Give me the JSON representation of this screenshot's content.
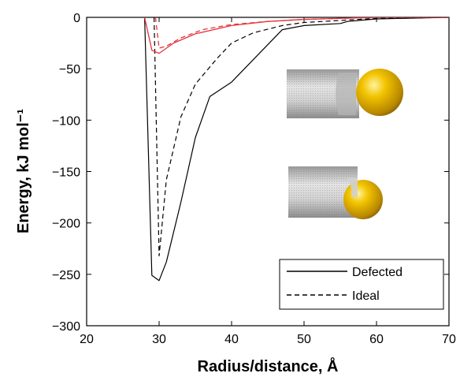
{
  "chart_data": {
    "type": "line",
    "title": "",
    "xlabel": "Radius/distance, Å",
    "ylabel": "Energy, kJ mol⁻¹",
    "xlim": [
      20,
      70
    ],
    "ylim": [
      -300,
      0
    ],
    "xticks": [
      20,
      30,
      40,
      50,
      60,
      70
    ],
    "yticks": [
      0,
      -50,
      -100,
      -150,
      -200,
      -250,
      -300
    ],
    "xtick_labels": [
      "20",
      "30",
      "40",
      "50",
      "60",
      "70"
    ],
    "ytick_labels": [
      "0",
      "−50",
      "−100",
      "−150",
      "−200",
      "−250",
      "−300"
    ],
    "grid": false,
    "legend": {
      "position": "bottom-right"
    },
    "series": [
      {
        "name": "Defected",
        "color": "#000000",
        "dash": "solid",
        "points": [
          [
            28,
            0
          ],
          [
            29,
            -251
          ],
          [
            30,
            -256
          ],
          [
            31,
            -238
          ],
          [
            33,
            -180
          ],
          [
            35,
            -117
          ],
          [
            37,
            -77
          ],
          [
            40,
            -63
          ],
          [
            47,
            -12
          ],
          [
            50,
            -8
          ],
          [
            55,
            -6
          ],
          [
            56,
            -4
          ],
          [
            60,
            -1.5
          ],
          [
            70,
            0
          ]
        ]
      },
      {
        "name": "Ideal",
        "color": "#000000",
        "dash": "dashed",
        "points": [
          [
            29.3,
            0
          ],
          [
            30,
            -232
          ],
          [
            31,
            -158
          ],
          [
            33,
            -97
          ],
          [
            35,
            -65
          ],
          [
            38,
            -40
          ],
          [
            40,
            -25
          ],
          [
            43,
            -15
          ],
          [
            47,
            -8
          ],
          [
            50,
            -5
          ],
          [
            55,
            -3
          ],
          [
            60,
            -1
          ],
          [
            70,
            0
          ]
        ]
      },
      {
        "color": "#e8323c",
        "dash": "solid",
        "points": [
          [
            28,
            0
          ],
          [
            29,
            -32
          ],
          [
            30,
            -35
          ],
          [
            32,
            -25
          ],
          [
            35,
            -16
          ],
          [
            40,
            -8
          ],
          [
            45,
            -4
          ],
          [
            50,
            -2
          ],
          [
            60,
            0
          ],
          [
            70,
            0
          ]
        ]
      },
      {
        "color": "#e8323c",
        "dash": "dashed",
        "points": [
          [
            29.5,
            0
          ],
          [
            30,
            -30
          ],
          [
            31,
            -28
          ],
          [
            33,
            -20
          ],
          [
            36,
            -12
          ],
          [
            40,
            -7
          ],
          [
            45,
            -4
          ],
          [
            50,
            -2
          ],
          [
            60,
            0
          ],
          [
            70,
            0
          ]
        ]
      }
    ]
  },
  "insets": [
    {
      "name": "nanotube-sphere-side-inset",
      "description_icon": "nanotube-with-gold-sphere-icon"
    },
    {
      "name": "nanotube-sphere-end-inset",
      "description_icon": "nanotube-with-gold-sphere-icon"
    }
  ],
  "colors": {
    "sphere_gold": "#e8b400",
    "tube_gray": "#bcbcbc",
    "red": "#e8323c"
  }
}
